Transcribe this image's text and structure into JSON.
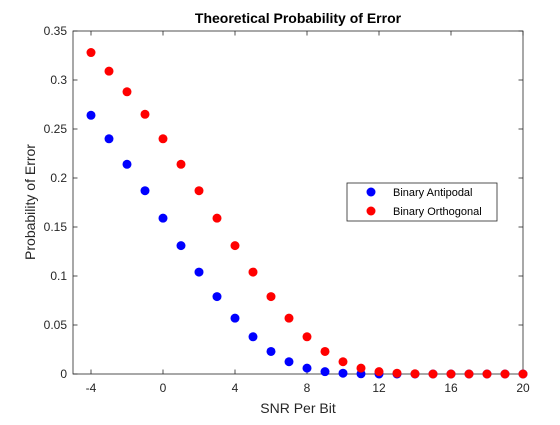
{
  "chart_data": {
    "type": "scatter",
    "title": "Theoretical Probability of Error",
    "xlabel": "SNR Per Bit",
    "ylabel": "Probability of Error",
    "xlim": [
      -5,
      20
    ],
    "ylim": [
      0,
      0.35
    ],
    "xticks": [
      "-4",
      "0",
      "4",
      "8",
      "12",
      "16",
      "20"
    ],
    "yticks": [
      "0",
      "0.05",
      "0.1",
      "0.15",
      "0.2",
      "0.25",
      "0.3",
      "0.35"
    ],
    "grid": false,
    "legend_position": "right",
    "x": [
      -4,
      -3,
      -2,
      -1,
      0,
      1,
      2,
      3,
      4,
      5,
      6,
      7,
      8,
      9,
      10,
      11,
      12,
      13,
      14,
      15,
      16,
      17,
      18,
      19,
      20
    ],
    "series": [
      {
        "name": "Binary Antipodal",
        "color": "#0000ff",
        "values": [
          0.264,
          0.24,
          0.214,
          0.187,
          0.159,
          0.131,
          0.104,
          0.079,
          0.057,
          0.038,
          0.023,
          0.0125,
          0.006,
          0.0024,
          0.0008,
          0.0002,
          0.0,
          0.0,
          0.0,
          0.0,
          0.0,
          0.0,
          0.0,
          0.0,
          0.0
        ]
      },
      {
        "name": "Binary Orthogonal",
        "color": "#ff0000",
        "values": [
          0.328,
          0.309,
          0.288,
          0.265,
          0.24,
          0.214,
          0.187,
          0.159,
          0.131,
          0.104,
          0.079,
          0.057,
          0.038,
          0.023,
          0.0125,
          0.006,
          0.0024,
          0.0008,
          0.0002,
          0.0,
          0.0,
          0.0,
          0.0,
          0.0,
          0.0
        ]
      }
    ]
  }
}
